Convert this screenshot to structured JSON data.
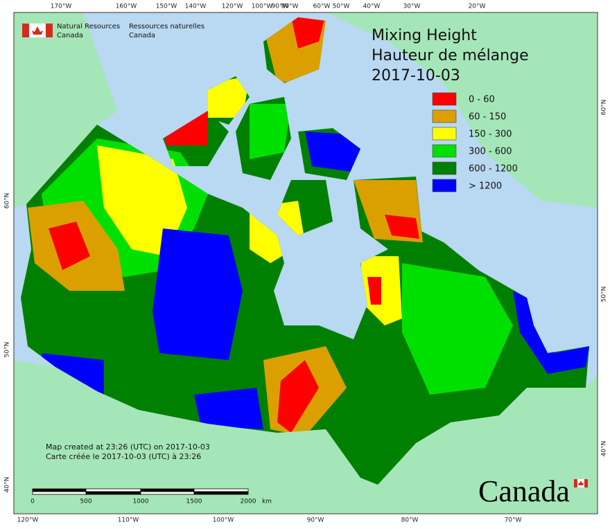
{
  "header": {
    "agency_en": [
      "Natural Resources",
      "Canada"
    ],
    "agency_fr": [
      "Ressources naturelles",
      "Canada"
    ]
  },
  "title": [
    "Mixing Height",
    "Hauteur de mélange",
    "2017-10-03"
  ],
  "legend": [
    {
      "label": "0 - 60",
      "color": "#ff0000"
    },
    {
      "label": "60 - 150",
      "color": "#dba000"
    },
    {
      "label": "150 - 300",
      "color": "#ffff00"
    },
    {
      "label": "300 - 600",
      "color": "#00e000"
    },
    {
      "label": "600 - 1200",
      "color": "#008000"
    },
    {
      "label": "> 1200",
      "color": "#0000ff"
    }
  ],
  "graticule": {
    "top": [
      "170°W",
      "160°W",
      "150°W",
      "140°W",
      "120°W",
      "100°W",
      "90°W",
      "80°W",
      "60°W",
      "50°W",
      "40°W",
      "30°W",
      "20°W"
    ],
    "bottom": [
      "120°W",
      "110°W",
      "100°W",
      "90°W",
      "80°W",
      "70°W"
    ],
    "left": [
      "60°N",
      "50°N",
      "40°N"
    ],
    "right": [
      "60°N",
      "50°N",
      "40°N"
    ]
  },
  "notes": [
    "Map created at 23:26 (UTC) on 2017-10-03",
    "Carte créée le 2017-10-03 (UTC) à 23:26"
  ],
  "scale_bar": {
    "labels": [
      "0",
      "500",
      "1000",
      "1500",
      "2000"
    ],
    "unit": "km"
  },
  "wordmark": "Canada"
}
